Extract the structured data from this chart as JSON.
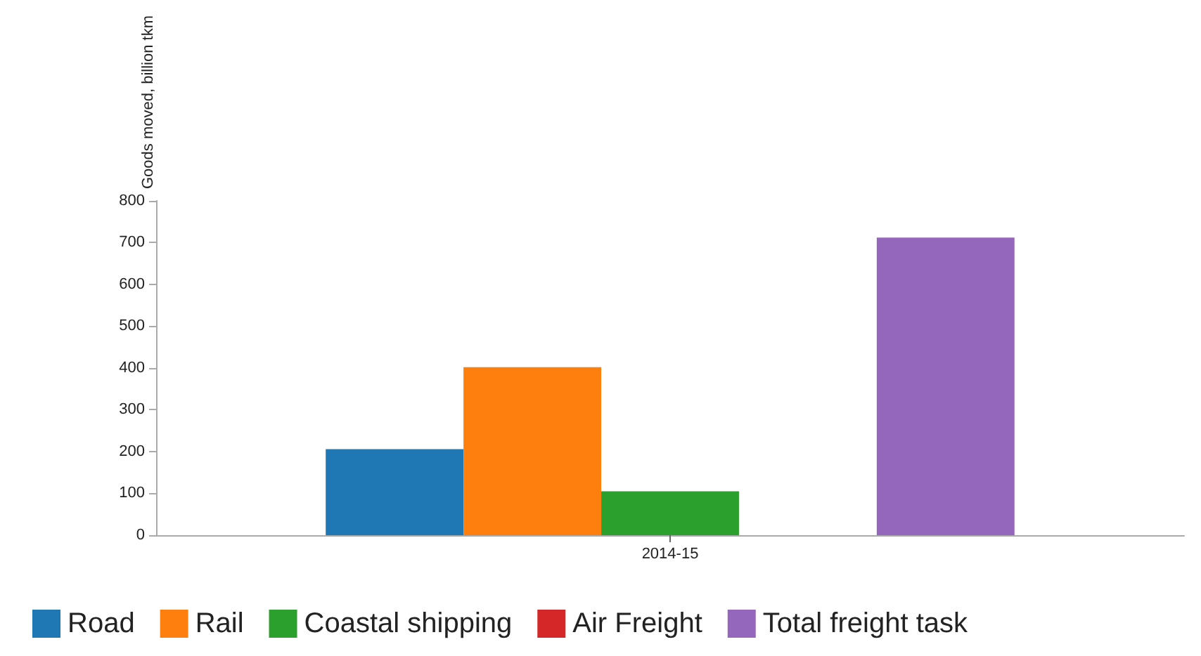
{
  "chart_data": {
    "type": "bar",
    "ylabel": "Goods moved, billion tkm",
    "categories": [
      "2014-15"
    ],
    "series": [
      {
        "name": "Road",
        "color": "#1f77b4",
        "values": [
          206
        ]
      },
      {
        "name": "Rail",
        "color": "#ff7f0e",
        "values": [
          402
        ]
      },
      {
        "name": "Coastal shipping",
        "color": "#2ca02c",
        "values": [
          105
        ]
      },
      {
        "name": "Air Freight",
        "color": "#d62728",
        "values": [
          0
        ]
      },
      {
        "name": "Total freight task",
        "color": "#9467bd",
        "values": [
          712
        ]
      }
    ],
    "ylim": [
      0,
      800
    ],
    "yticks": [
      0,
      100,
      200,
      300,
      400,
      500,
      600,
      700,
      800
    ],
    "grid": false,
    "legend": "bottom"
  }
}
